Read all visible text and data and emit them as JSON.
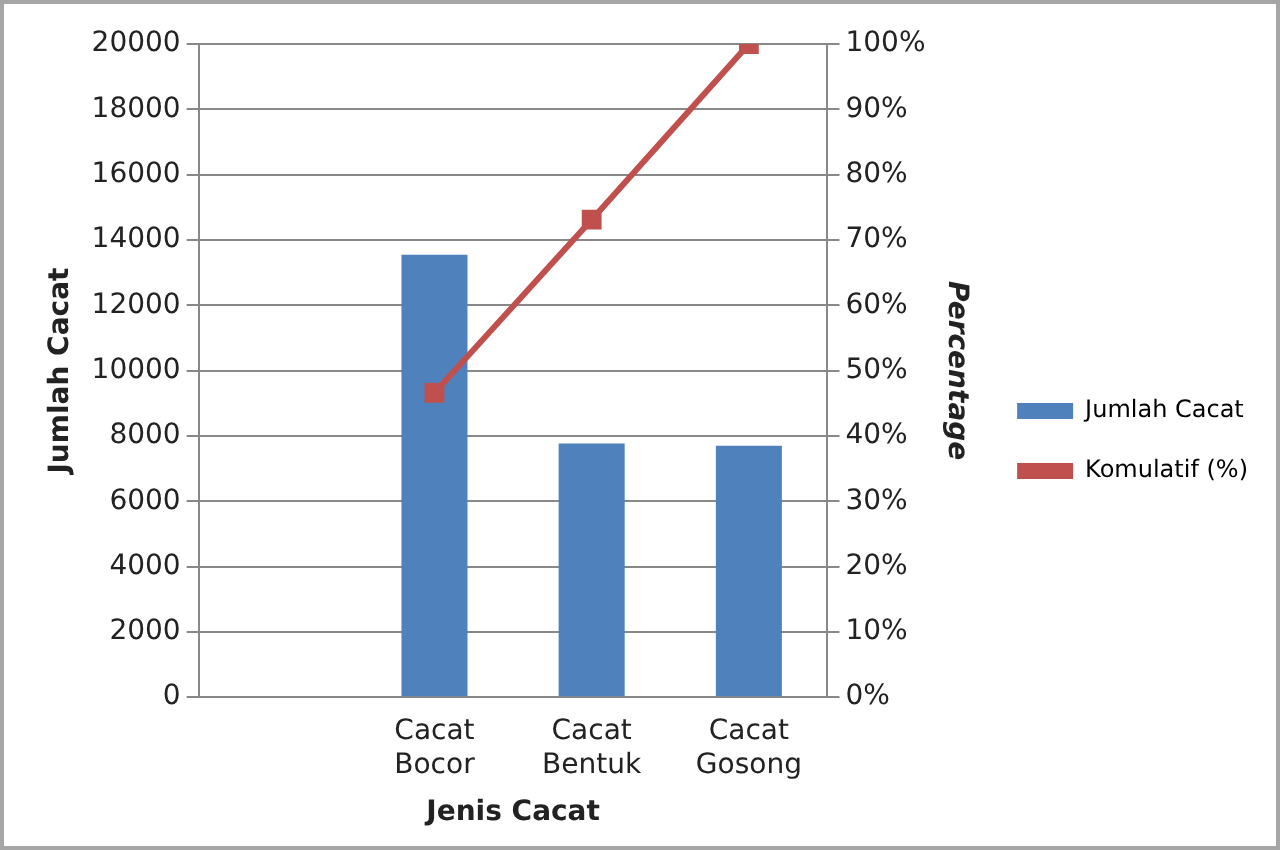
{
  "chart_data": {
    "type": "bar",
    "categories": [
      null,
      "Cacat Bocor",
      "Cacat Bentuk",
      "Cacat Gosong"
    ],
    "xlabel": "Jenis Cacat",
    "ylabel": "Jumlah Cacat",
    "y2label": "Percentage",
    "series": [
      {
        "name": "Jumlah Cacat",
        "color": "#4f81bd",
        "values": [
          null,
          13550,
          7770,
          7700
        ]
      },
      {
        "name": "Komulatif (%)",
        "type": "line",
        "axis": "y2",
        "color": "#c0504d",
        "marker": "square",
        "values": [
          null,
          46.6,
          73.1,
          100
        ]
      }
    ],
    "ylim": [
      0,
      20000
    ],
    "yticks": [
      0,
      2000,
      4000,
      6000,
      8000,
      10000,
      12000,
      14000,
      16000,
      18000,
      20000
    ],
    "y2lim": [
      0,
      100
    ],
    "y2ticks": [
      {
        "value": 0,
        "label": "0%"
      },
      {
        "value": 10,
        "label": "10%"
      },
      {
        "value": 20,
        "label": "20%"
      },
      {
        "value": 30,
        "label": "30%"
      },
      {
        "value": 40,
        "label": "40%"
      },
      {
        "value": 50,
        "label": "50%"
      },
      {
        "value": 60,
        "label": "60%"
      },
      {
        "value": 70,
        "label": "70%"
      },
      {
        "value": 80,
        "label": "80%"
      },
      {
        "value": 90,
        "label": "90%"
      },
      {
        "value": 100,
        "label": "100%"
      }
    ],
    "grid": "y",
    "legend": "right"
  }
}
